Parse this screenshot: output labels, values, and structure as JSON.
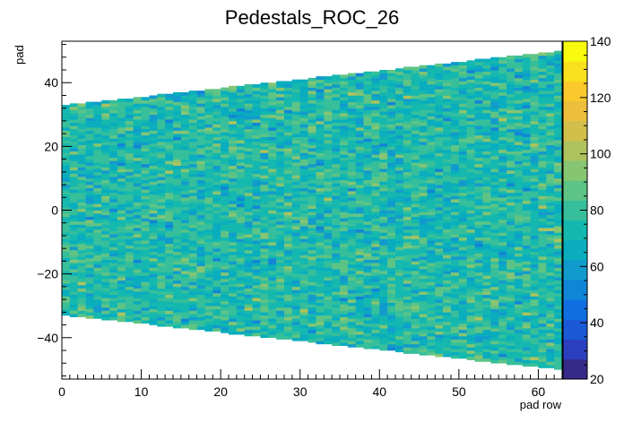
{
  "chart_data": {
    "type": "heatmap",
    "title": "Pedestals_ROC_26",
    "xlabel": "pad row",
    "ylabel": "pad",
    "xlim": [
      0,
      63
    ],
    "ylim": [
      -53,
      53
    ],
    "x_ticks": [
      "0",
      "10",
      "20",
      "30",
      "40",
      "50",
      "60"
    ],
    "y_ticks": [
      "−40",
      "−20",
      "0",
      "20",
      "40"
    ],
    "zlim": [
      20,
      140
    ],
    "z_ticks": [
      "20",
      "40",
      "60",
      "80",
      "100",
      "120",
      "140"
    ],
    "pad_rows": 63,
    "pads_per_row_first": 66,
    "pads_per_row_last": 100,
    "typical_value": 75,
    "value_spread": [
      55,
      100
    ],
    "palette": [
      "#352a87",
      "#2c3fbf",
      "#1a5ad6",
      "#0f6fe0",
      "#1185d6",
      "#119bcc",
      "#09adbe",
      "#15b8ae",
      "#36bf9a",
      "#5ec486",
      "#86c572",
      "#aec35e",
      "#d1bf4c",
      "#ecbf3a",
      "#fcc92d",
      "#f9e11d",
      "#f9fb0e"
    ],
    "grid": false,
    "legend": "color bar right"
  }
}
